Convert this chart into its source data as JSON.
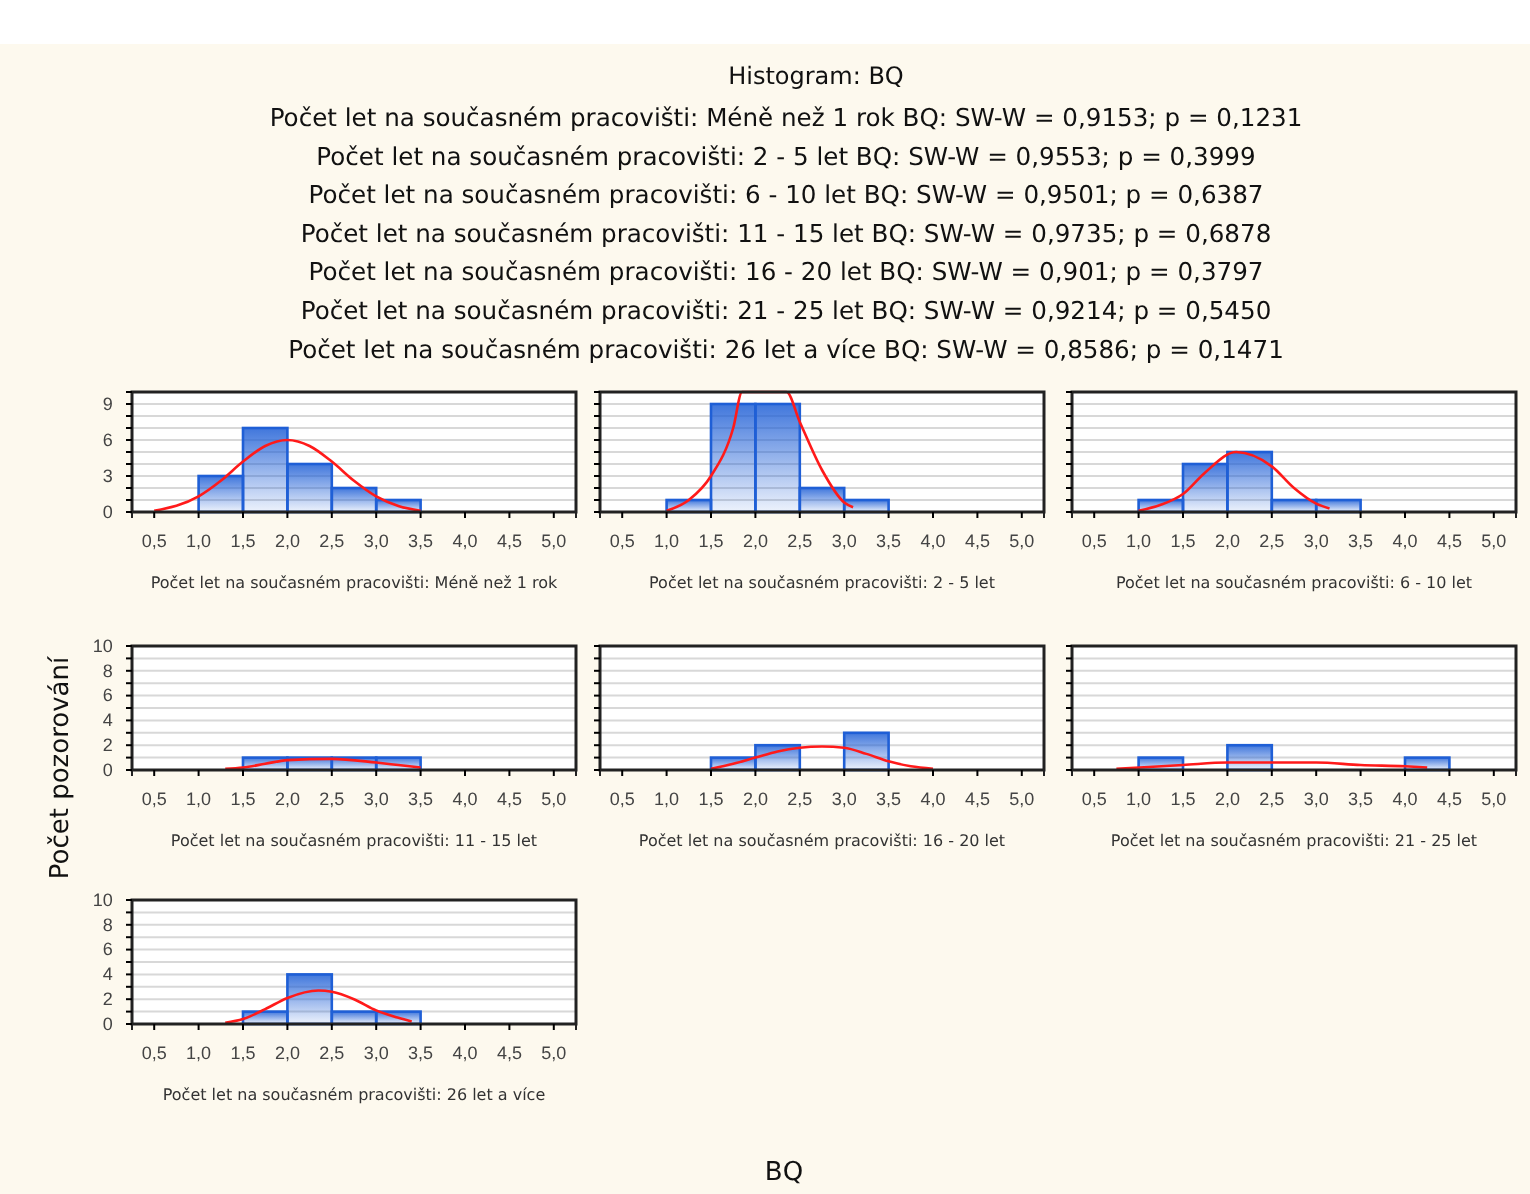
{
  "chart_data": [
    {
      "type": "other",
      "title": "Histogram:      BQ",
      "annotations": [
        "Počet let na současném pracovišti: Méně než 1 rok  BQ:   SW-W = 0,9153; p = 0,1231",
        "Počet let na současném pracovišti: 2 - 5 let  BQ:   SW-W = 0,9553; p = 0,3999",
        "Počet let na současném pracovišti: 6 - 10 let  BQ:   SW-W = 0,9501; p = 0,6387",
        "Počet let na současném pracovišti: 11 - 15 let  BQ:   SW-W = 0,9735; p = 0,6878",
        "Počet let na současném pracovišti: 16 - 20 let  BQ:   SW-W = 0,901; p = 0,3797",
        "Počet let na současném pracovišti: 21 - 25 let  BQ:   SW-W = 0,9214; p = 0,5450",
        "Počet let na současném pracovišti: 26 let a více  BQ:   SW-W = 0,8586; p = 0,1471"
      ],
      "xlabel": "BQ",
      "ylabel": "Počet pozorování"
    },
    {
      "type": "histogram",
      "xlabel": "Počet let na současném pracovišti: Méně než 1 rok",
      "bins": [
        1.0,
        1.5,
        2.0,
        2.5,
        3.0,
        3.5
      ],
      "grid": "y",
      "xlim": [
        0.25,
        5.25
      ],
      "ylim": [
        0,
        10
      ],
      "xticks": [
        {
          "value": 0.5,
          "label": "0,5"
        },
        {
          "value": 1,
          "label": "1,0"
        },
        {
          "value": 1.5,
          "label": "1,5"
        },
        {
          "value": 2,
          "label": "2,0"
        },
        {
          "value": 2.5,
          "label": "2,5"
        },
        {
          "value": 3,
          "label": "3,0"
        },
        {
          "value": 3.5,
          "label": "3,5"
        },
        {
          "value": 4,
          "label": "4,0"
        },
        {
          "value": 4.5,
          "label": "4,5"
        },
        {
          "value": 5,
          "label": "5,0"
        }
      ],
      "yticks": [
        0,
        {
          "value": 1,
          "label": null
        },
        {
          "value": 2,
          "label": null
        },
        3,
        {
          "value": 4,
          "label": null
        },
        {
          "value": 5,
          "label": null
        },
        6,
        {
          "value": 7,
          "label": null
        },
        {
          "value": 8,
          "label": null
        },
        9,
        {
          "value": 10,
          "label": null
        }
      ],
      "series": [
        {
          "type": "histogram",
          "color": "#1f5fd6",
          "values": [
            3,
            7,
            4,
            2,
            1
          ]
        },
        {
          "type": "line",
          "color": "#ff1a1a",
          "x": [
            0.5,
            1.0,
            1.25,
            1.5,
            1.75,
            2.0,
            2.25,
            2.5,
            2.75,
            3.0,
            3.25,
            3.5
          ],
          "values": [
            0.1,
            1.3,
            2.6,
            4.2,
            5.5,
            6.0,
            5.5,
            4.2,
            2.6,
            1.3,
            0.5,
            0.1
          ]
        }
      ]
    },
    {
      "type": "histogram",
      "xlabel": "Počet let na současném pracovišti: 2 - 5 let",
      "bins": [
        1.0,
        1.5,
        2.0,
        2.5,
        3.0,
        3.5
      ],
      "grid": "y",
      "xlim": [
        0.25,
        5.25
      ],
      "ylim": [
        0,
        10
      ],
      "xticks": [
        {
          "value": 0.5,
          "label": "0,5"
        },
        {
          "value": 1,
          "label": "1,0"
        },
        {
          "value": 1.5,
          "label": "1,5"
        },
        {
          "value": 2,
          "label": "2,0"
        },
        {
          "value": 2.5,
          "label": "2,5"
        },
        {
          "value": 3,
          "label": "3,0"
        },
        {
          "value": 3.5,
          "label": "3,5"
        },
        {
          "value": 4,
          "label": "4,0"
        },
        {
          "value": 4.5,
          "label": "4,5"
        },
        {
          "value": 5,
          "label": "5,0"
        }
      ],
      "yticks": [
        {
          "value": 0,
          "label": null
        },
        {
          "value": 1,
          "label": null
        },
        {
          "value": 2,
          "label": null
        },
        {
          "value": 3,
          "label": null
        },
        {
          "value": 4,
          "label": null
        },
        {
          "value": 5,
          "label": null
        },
        {
          "value": 6,
          "label": null
        },
        {
          "value": 7,
          "label": null
        },
        {
          "value": 8,
          "label": null
        },
        {
          "value": 9,
          "label": null
        },
        {
          "value": 10,
          "label": null
        }
      ],
      "tick_labels": "x",
      "series": [
        {
          "type": "histogram",
          "color": "#1f5fd6",
          "values": [
            1,
            9,
            9,
            2,
            1
          ]
        },
        {
          "type": "line",
          "color": "#ff1a1a",
          "x": [
            1.0,
            1.25,
            1.5,
            1.75,
            1.85,
            2.35,
            2.5,
            2.75,
            3.0,
            3.1
          ],
          "values": [
            0.1,
            1.0,
            3.0,
            7.0,
            10,
            10,
            7.5,
            3.5,
            0.8,
            0.4
          ]
        }
      ]
    },
    {
      "type": "histogram",
      "xlabel": "Počet let na současném pracovišti: 6 - 10 let",
      "bins": [
        1.0,
        1.5,
        2.0,
        2.5,
        3.0,
        3.5
      ],
      "grid": "y",
      "xlim": [
        0.25,
        5.25
      ],
      "ylim": [
        0,
        10
      ],
      "xticks": [
        {
          "value": 0.5,
          "label": "0,5"
        },
        {
          "value": 1,
          "label": "1,0"
        },
        {
          "value": 1.5,
          "label": "1,5"
        },
        {
          "value": 2,
          "label": "2,0"
        },
        {
          "value": 2.5,
          "label": "2,5"
        },
        {
          "value": 3,
          "label": "3,0"
        },
        {
          "value": 3.5,
          "label": "3,5"
        },
        {
          "value": 4,
          "label": "4,0"
        },
        {
          "value": 4.5,
          "label": "4,5"
        },
        {
          "value": 5,
          "label": "5,0"
        }
      ],
      "yticks": [
        {
          "value": 0,
          "label": null
        },
        {
          "value": 1,
          "label": null
        },
        {
          "value": 2,
          "label": null
        },
        {
          "value": 3,
          "label": null
        },
        {
          "value": 4,
          "label": null
        },
        {
          "value": 5,
          "label": null
        },
        {
          "value": 6,
          "label": null
        },
        {
          "value": 7,
          "label": null
        },
        {
          "value": 8,
          "label": null
        },
        {
          "value": 9,
          "label": null
        },
        {
          "value": 10,
          "label": null
        }
      ],
      "tick_labels": "x",
      "series": [
        {
          "type": "histogram",
          "color": "#1f5fd6",
          "values": [
            1,
            4,
            5,
            1,
            1
          ]
        },
        {
          "type": "line",
          "color": "#ff1a1a",
          "x": [
            1.0,
            1.25,
            1.5,
            1.75,
            2.1,
            2.5,
            2.75,
            3.0,
            3.15
          ],
          "values": [
            0.1,
            0.6,
            1.5,
            3.3,
            5.0,
            3.8,
            2.0,
            0.7,
            0.3
          ]
        }
      ]
    },
    {
      "type": "histogram",
      "xlabel": "Počet let na současném pracovišti: 11 - 15 let",
      "bins": [
        1.5,
        2.0,
        2.5,
        3.0,
        3.5
      ],
      "grid": "y",
      "xlim": [
        0.25,
        5.25
      ],
      "ylim": [
        0,
        10
      ],
      "xticks": [
        {
          "value": 0.5,
          "label": "0,5"
        },
        {
          "value": 1,
          "label": "1,0"
        },
        {
          "value": 1.5,
          "label": "1,5"
        },
        {
          "value": 2,
          "label": "2,0"
        },
        {
          "value": 2.5,
          "label": "2,5"
        },
        {
          "value": 3,
          "label": "3,0"
        },
        {
          "value": 3.5,
          "label": "3,5"
        },
        {
          "value": 4,
          "label": "4,0"
        },
        {
          "value": 4.5,
          "label": "4,5"
        },
        {
          "value": 5,
          "label": "5,0"
        }
      ],
      "yticks": [
        0,
        {
          "value": 1,
          "label": null
        },
        2,
        {
          "value": 3,
          "label": null
        },
        4,
        {
          "value": 5,
          "label": null
        },
        6,
        {
          "value": 7,
          "label": null
        },
        8,
        {
          "value": 9,
          "label": null
        },
        10
      ],
      "series": [
        {
          "type": "histogram",
          "color": "#1f5fd6",
          "values": [
            1,
            1,
            1,
            1
          ]
        },
        {
          "type": "line",
          "color": "#ff1a1a",
          "x": [
            1.3,
            1.5,
            1.75,
            2.0,
            2.5,
            3.0,
            3.25,
            3.5
          ],
          "values": [
            0.1,
            0.2,
            0.5,
            0.8,
            0.9,
            0.6,
            0.4,
            0.2
          ]
        }
      ]
    },
    {
      "type": "histogram",
      "xlabel": "Počet let na současném pracovišti: 16 - 20 let",
      "bins": [
        1.5,
        2.0,
        2.5,
        3.0,
        3.5
      ],
      "grid": "y",
      "xlim": [
        0.25,
        5.25
      ],
      "ylim": [
        0,
        10
      ],
      "xticks": [
        {
          "value": 0.5,
          "label": "0,5"
        },
        {
          "value": 1,
          "label": "1,0"
        },
        {
          "value": 1.5,
          "label": "1,5"
        },
        {
          "value": 2,
          "label": "2,0"
        },
        {
          "value": 2.5,
          "label": "2,5"
        },
        {
          "value": 3,
          "label": "3,0"
        },
        {
          "value": 3.5,
          "label": "3,5"
        },
        {
          "value": 4,
          "label": "4,0"
        },
        {
          "value": 4.5,
          "label": "4,5"
        },
        {
          "value": 5,
          "label": "5,0"
        }
      ],
      "yticks": [
        {
          "value": 0,
          "label": null
        },
        {
          "value": 1,
          "label": null
        },
        {
          "value": 2,
          "label": null
        },
        {
          "value": 3,
          "label": null
        },
        {
          "value": 4,
          "label": null
        },
        {
          "value": 5,
          "label": null
        },
        {
          "value": 6,
          "label": null
        },
        {
          "value": 7,
          "label": null
        },
        {
          "value": 8,
          "label": null
        },
        {
          "value": 9,
          "label": null
        },
        {
          "value": 10,
          "label": null
        }
      ],
      "tick_labels": "x",
      "series": [
        {
          "type": "histogram",
          "color": "#1f5fd6",
          "values": [
            1,
            2,
            0,
            3
          ]
        },
        {
          "type": "line",
          "color": "#ff1a1a",
          "x": [
            1.5,
            1.75,
            2.0,
            2.25,
            2.75,
            3.0,
            3.25,
            3.5,
            3.75,
            4.0
          ],
          "values": [
            0.1,
            0.5,
            1.0,
            1.5,
            1.9,
            1.8,
            1.3,
            0.7,
            0.3,
            0.1
          ]
        }
      ]
    },
    {
      "type": "histogram",
      "xlabel": "Počet let na současném pracovišti: 21 - 25 let",
      "bins": [
        1.0,
        1.5,
        2.0,
        2.5,
        3.0,
        3.5,
        4.0,
        4.5
      ],
      "grid": "y",
      "xlim": [
        0.25,
        5.25
      ],
      "ylim": [
        0,
        10
      ],
      "xticks": [
        {
          "value": 0.5,
          "label": "0,5"
        },
        {
          "value": 1,
          "label": "1,0"
        },
        {
          "value": 1.5,
          "label": "1,5"
        },
        {
          "value": 2,
          "label": "2,0"
        },
        {
          "value": 2.5,
          "label": "2,5"
        },
        {
          "value": 3,
          "label": "3,0"
        },
        {
          "value": 3.5,
          "label": "3,5"
        },
        {
          "value": 4,
          "label": "4,0"
        },
        {
          "value": 4.5,
          "label": "4,5"
        },
        {
          "value": 5,
          "label": "5,0"
        }
      ],
      "yticks": [
        {
          "value": 0,
          "label": null
        },
        {
          "value": 1,
          "label": null
        },
        {
          "value": 2,
          "label": null
        },
        {
          "value": 3,
          "label": null
        },
        {
          "value": 4,
          "label": null
        },
        {
          "value": 5,
          "label": null
        },
        {
          "value": 6,
          "label": null
        },
        {
          "value": 7,
          "label": null
        },
        {
          "value": 8,
          "label": null
        },
        {
          "value": 9,
          "label": null
        },
        {
          "value": 10,
          "label": null
        }
      ],
      "tick_labels": "x",
      "series": [
        {
          "type": "histogram",
          "color": "#1f5fd6",
          "values": [
            1,
            0,
            2,
            0,
            0,
            0,
            1
          ]
        },
        {
          "type": "line",
          "color": "#ff1a1a",
          "x": [
            0.75,
            1.5,
            2.0,
            2.5,
            3.0,
            3.5,
            4.0,
            4.25
          ],
          "values": [
            0.1,
            0.4,
            0.6,
            0.6,
            0.6,
            0.4,
            0.3,
            0.2
          ]
        }
      ]
    },
    {
      "type": "histogram",
      "xlabel": "Počet let na současném pracovišti: 26 let a více",
      "bins": [
        1.5,
        2.0,
        2.5,
        3.0,
        3.5
      ],
      "grid": "y",
      "xlim": [
        0.25,
        5.25
      ],
      "ylim": [
        0,
        10
      ],
      "xticks": [
        {
          "value": 0.5,
          "label": "0,5"
        },
        {
          "value": 1,
          "label": "1,0"
        },
        {
          "value": 1.5,
          "label": "1,5"
        },
        {
          "value": 2,
          "label": "2,0"
        },
        {
          "value": 2.5,
          "label": "2,5"
        },
        {
          "value": 3,
          "label": "3,0"
        },
        {
          "value": 3.5,
          "label": "3,5"
        },
        {
          "value": 4,
          "label": "4,0"
        },
        {
          "value": 4.5,
          "label": "4,5"
        },
        {
          "value": 5,
          "label": "5,0"
        }
      ],
      "yticks": [
        0,
        {
          "value": 1,
          "label": null
        },
        2,
        {
          "value": 3,
          "label": null
        },
        4,
        {
          "value": 5,
          "label": null
        },
        6,
        {
          "value": 7,
          "label": null
        },
        8,
        {
          "value": 9,
          "label": null
        },
        10
      ],
      "series": [
        {
          "type": "histogram",
          "color": "#1f5fd6",
          "values": [
            1,
            4,
            1,
            1
          ]
        },
        {
          "type": "line",
          "color": "#ff1a1a",
          "x": [
            1.3,
            1.5,
            1.75,
            2.0,
            2.35,
            2.5,
            2.75,
            3.0,
            3.25,
            3.4
          ],
          "values": [
            0.1,
            0.4,
            1.2,
            2.1,
            2.7,
            2.6,
            2.0,
            1.1,
            0.5,
            0.2
          ]
        }
      ]
    }
  ]
}
